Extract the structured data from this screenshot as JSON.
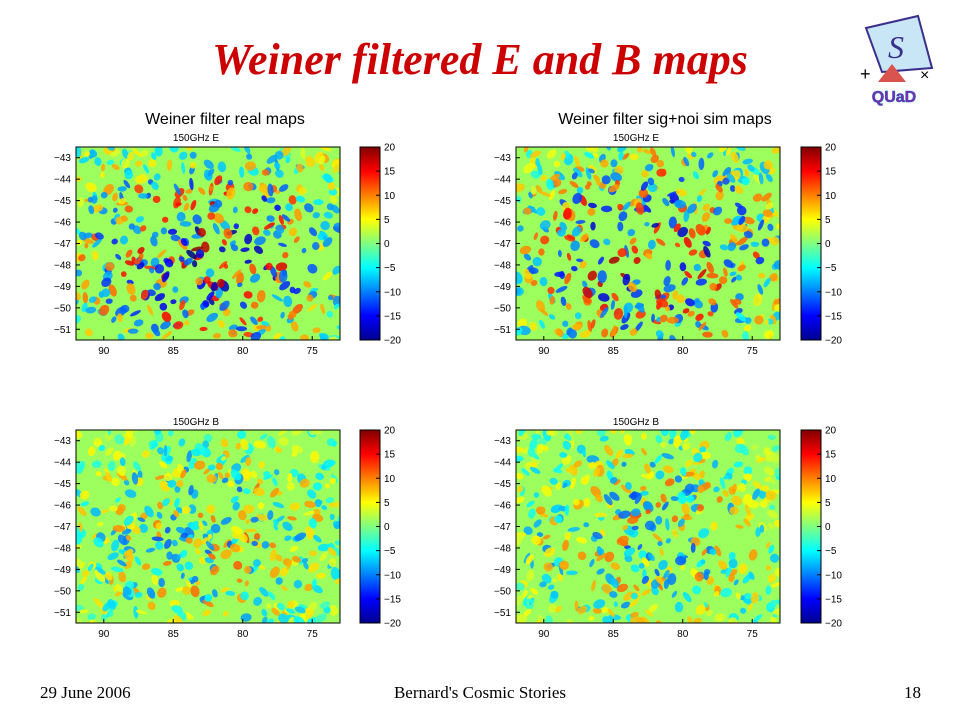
{
  "slide": {
    "title": "Weiner filtered E and B maps",
    "footer_left": "29 June 2006",
    "footer_center": "Bernard's Cosmic Stories",
    "page_number": "18"
  },
  "logo": {
    "text": "QUaD",
    "glyph": "S",
    "plus": "+",
    "times": "×"
  },
  "chart_data": [
    {
      "type": "heatmap",
      "column_title": "Weiner filter real maps",
      "title": "150GHz E",
      "x_ticks": [
        90,
        85,
        80,
        75
      ],
      "y_ticks": [
        -43,
        -44,
        -45,
        -46,
        -47,
        -48,
        -49,
        -50,
        -51
      ],
      "colorbar_ticks": [
        20,
        15,
        10,
        5,
        0,
        -5,
        -10,
        -15,
        -20
      ],
      "clim": [
        -20,
        20
      ],
      "colormap": "jet"
    },
    {
      "type": "heatmap",
      "column_title": "Weiner filter sig+noi sim maps",
      "title": "150GHz E",
      "x_ticks": [
        90,
        85,
        80,
        75
      ],
      "y_ticks": [
        -43,
        -44,
        -45,
        -46,
        -47,
        -48,
        -49,
        -50,
        -51
      ],
      "colorbar_ticks": [
        20,
        15,
        10,
        5,
        0,
        -5,
        -10,
        -15,
        -20
      ],
      "clim": [
        -20,
        20
      ],
      "colormap": "jet"
    },
    {
      "type": "heatmap",
      "column_title": "",
      "title": "150GHz B",
      "x_ticks": [
        90,
        85,
        80,
        75
      ],
      "y_ticks": [
        -43,
        -44,
        -45,
        -46,
        -47,
        -48,
        -49,
        -50,
        -51
      ],
      "colorbar_ticks": [
        20,
        15,
        10,
        5,
        0,
        -5,
        -10,
        -15,
        -20
      ],
      "clim": [
        -20,
        20
      ],
      "colormap": "jet"
    },
    {
      "type": "heatmap",
      "column_title": "",
      "title": "150GHz B",
      "x_ticks": [
        90,
        85,
        80,
        75
      ],
      "y_ticks": [
        -43,
        -44,
        -45,
        -46,
        -47,
        -48,
        -49,
        -50,
        -51
      ],
      "colorbar_ticks": [
        20,
        15,
        10,
        5,
        0,
        -5,
        -10,
        -15,
        -20
      ],
      "clim": [
        -20,
        20
      ],
      "colormap": "jet"
    }
  ]
}
